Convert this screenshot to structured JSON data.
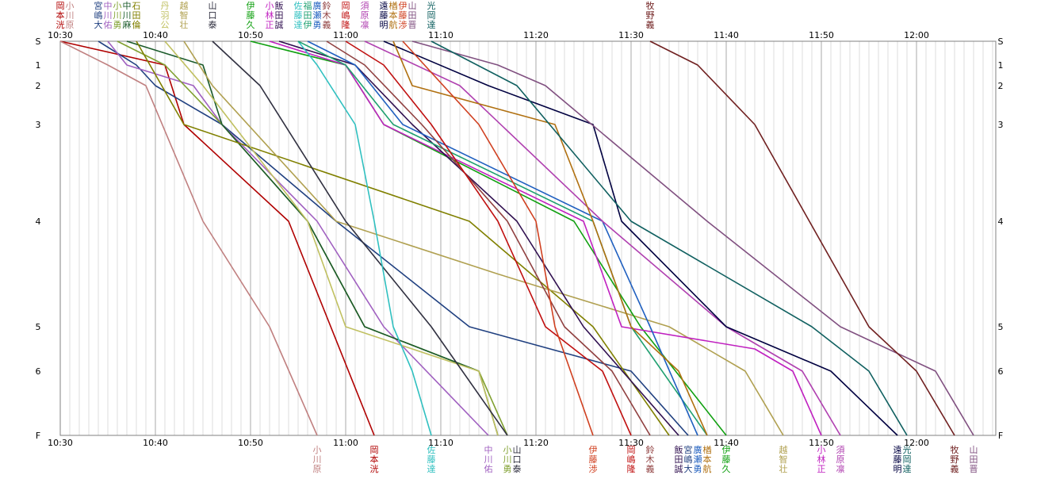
{
  "chart_data": {
    "type": "line",
    "title": "",
    "xlabel": "",
    "ylabel": "",
    "x_unit": "time of day",
    "xlim": [
      "10:30",
      "12:08"
    ],
    "x_ticks": [
      "10:30",
      "10:40",
      "10:50",
      "11:00",
      "11:10",
      "11:20",
      "11:30",
      "11:40",
      "11:50",
      "12:00"
    ],
    "y_ticks": [
      {
        "label": "S",
        "v": 0
      },
      {
        "label": "1",
        "v": 1
      },
      {
        "label": "2",
        "v": 2
      },
      {
        "label": "3",
        "v": 3
      },
      {
        "label": "4",
        "v": 4
      },
      {
        "label": "5",
        "v": 5
      },
      {
        "label": "6",
        "v": 6
      },
      {
        "label": "F",
        "v": 7
      }
    ],
    "grid": "vertical lines every minute",
    "series": [
      {
        "name": "岡本洸",
        "color": "#b00000",
        "points": [
          [
            "10:30",
            0
          ],
          [
            "10:41",
            1
          ],
          [
            "10:43",
            3
          ],
          [
            "10:54",
            4
          ],
          [
            "11:03",
            7
          ]
        ],
        "label_top": true,
        "label_bottom": true
      },
      {
        "name": "小川原",
        "color": "#c08080",
        "points": [
          [
            "10:30",
            0
          ],
          [
            "10:35",
            1
          ],
          [
            "10:39",
            2
          ],
          [
            "10:45",
            4
          ],
          [
            "10:52",
            5
          ],
          [
            "10:57",
            7
          ]
        ],
        "label_top": true,
        "label_bottom": true
      },
      {
        "name": "宮嶋大",
        "color": "#204080",
        "points": [
          [
            "10:34",
            0
          ],
          [
            "10:38",
            1
          ],
          [
            "10:40",
            2
          ],
          [
            "10:47",
            3
          ],
          [
            "10:59",
            4
          ],
          [
            "11:13",
            5
          ],
          [
            "11:30",
            6
          ],
          [
            "11:36",
            7
          ]
        ],
        "label_top": true,
        "label_bottom": true
      },
      {
        "name": "中川佑",
        "color": "#a060c0",
        "points": [
          [
            "10:35",
            0
          ],
          [
            "10:37",
            1
          ],
          [
            "10:44",
            2
          ],
          [
            "10:47",
            3
          ],
          [
            "10:57",
            4
          ],
          [
            "11:04",
            5
          ],
          [
            "11:15",
            7
          ]
        ],
        "label_top": true,
        "label_bottom": true
      },
      {
        "name": "小川勇",
        "color": "#80a030",
        "points": [
          [
            "10:36",
            0
          ],
          [
            "10:41",
            1
          ],
          [
            "10:47",
            3
          ],
          [
            "10:56",
            4
          ],
          [
            "11:02",
            5
          ],
          [
            "11:14",
            6
          ],
          [
            "11:17",
            7
          ]
        ],
        "label_top": true,
        "label_bottom": true
      },
      {
        "name": "中川麻",
        "color": "#1a5a2a",
        "points": [
          [
            "10:37",
            0
          ],
          [
            "10:45",
            1
          ],
          [
            "10:47",
            3
          ],
          [
            "10:56",
            4
          ],
          [
            "11:02",
            5
          ],
          [
            "11:14",
            6
          ],
          [
            "11:16",
            7
          ]
        ],
        "label_top": true,
        "label_bottom": false
      },
      {
        "name": "石田倫",
        "color": "#808000",
        "points": [
          [
            "10:38",
            0
          ],
          [
            "10:43",
            3
          ],
          [
            "11:13",
            4
          ],
          [
            "11:26",
            5
          ],
          [
            "11:34",
            7
          ]
        ],
        "label_top": true,
        "label_bottom": false
      },
      {
        "name": "丹羽公",
        "color": "#c0c060",
        "points": [
          [
            "10:41",
            0
          ],
          [
            "10:45",
            2
          ],
          [
            "10:56",
            4
          ],
          [
            "11:00",
            5
          ],
          [
            "11:14",
            6
          ],
          [
            "11:16",
            7
          ]
        ],
        "label_top": true,
        "label_bottom": false
      },
      {
        "name": "越智壮",
        "color": "#b0a050",
        "points": [
          [
            "10:43",
            0
          ],
          [
            "10:46",
            2
          ],
          [
            "10:59",
            4
          ],
          [
            "11:16",
            4.5
          ],
          [
            "11:34",
            5
          ],
          [
            "11:42",
            6
          ],
          [
            "11:46",
            7
          ]
        ],
        "label_top": true,
        "label_bottom": true
      },
      {
        "name": "山口泰",
        "color": "#303040",
        "points": [
          [
            "10:46",
            0
          ],
          [
            "10:51",
            2
          ],
          [
            "11:00",
            4
          ],
          [
            "11:09",
            5
          ],
          [
            "11:17",
            7
          ]
        ],
        "label_top": true,
        "label_bottom": true
      },
      {
        "name": "伊藤久",
        "color": "#10a010",
        "points": [
          [
            "10:50",
            0
          ],
          [
            "11:00",
            1
          ],
          [
            "11:04",
            3
          ],
          [
            "11:24",
            4
          ],
          [
            "11:31",
            5
          ],
          [
            "11:40",
            7
          ]
        ],
        "label_top": true,
        "label_bottom": true
      },
      {
        "name": "小林正",
        "color": "#c020c0",
        "points": [
          [
            "10:52",
            0
          ],
          [
            "11:00",
            1
          ],
          [
            "11:04",
            3
          ],
          [
            "11:25",
            4
          ],
          [
            "11:29",
            5
          ],
          [
            "11:43",
            5.5
          ],
          [
            "11:47",
            6
          ],
          [
            "11:50",
            7
          ]
        ],
        "label_top": true,
        "label_bottom": true
      },
      {
        "name": "飯田誠",
        "color": "#301050",
        "points": [
          [
            "10:53",
            0
          ],
          [
            "11:01",
            1
          ],
          [
            "11:07",
            3
          ],
          [
            "11:18",
            4
          ],
          [
            "11:25",
            5
          ],
          [
            "11:35",
            7
          ]
        ],
        "label_top": true,
        "label_bottom": true
      },
      {
        "name": "佐藤達",
        "color": "#30c0c0",
        "points": [
          [
            "10:55",
            0
          ],
          [
            "10:57",
            1
          ],
          [
            "11:01",
            3
          ],
          [
            "11:03",
            4
          ],
          [
            "11:05",
            5
          ],
          [
            "11:07",
            6
          ],
          [
            "11:09",
            7
          ]
        ],
        "label_top": true,
        "label_bottom": true
      },
      {
        "name": "福田伊",
        "color": "#20a070",
        "points": [
          [
            "10:55",
            0
          ],
          [
            "11:00",
            1
          ],
          [
            "11:05",
            3
          ],
          [
            "11:26",
            4
          ],
          [
            "11:30",
            5
          ],
          [
            "11:38",
            7
          ]
        ],
        "label_top": true,
        "label_bottom": false
      },
      {
        "name": "廣瀬勇",
        "color": "#2060c0",
        "points": [
          [
            "10:56",
            0
          ],
          [
            "11:01",
            1
          ],
          [
            "11:06",
            3
          ],
          [
            "11:27",
            4
          ],
          [
            "11:32",
            5
          ],
          [
            "11:37",
            7
          ]
        ],
        "label_top": true,
        "label_bottom": true
      },
      {
        "name": "鈴木義",
        "color": "#904040",
        "points": [
          [
            "10:58",
            0
          ],
          [
            "11:02",
            1
          ],
          [
            "11:08",
            3
          ],
          [
            "11:17",
            4
          ],
          [
            "11:23",
            5
          ],
          [
            "11:28",
            6
          ],
          [
            "11:32",
            7
          ]
        ],
        "label_top": true,
        "label_bottom": true
      },
      {
        "name": "岡嶋隆",
        "color": "#c01010",
        "points": [
          [
            "11:00",
            0
          ],
          [
            "11:04",
            1
          ],
          [
            "11:09",
            3
          ],
          [
            "11:16",
            4
          ],
          [
            "11:21",
            5
          ],
          [
            "11:27",
            6
          ],
          [
            "11:30",
            7
          ]
        ],
        "label_top": true,
        "label_bottom": true
      },
      {
        "name": "須原凛",
        "color": "#b040b0",
        "points": [
          [
            "11:02",
            0
          ],
          [
            "11:12",
            2
          ],
          [
            "11:27",
            4
          ],
          [
            "11:40",
            5
          ],
          [
            "11:48",
            6
          ],
          [
            "11:52",
            7
          ]
        ],
        "label_top": true,
        "label_bottom": true
      },
      {
        "name": "遠藤明",
        "color": "#000040",
        "points": [
          [
            "11:04",
            0
          ],
          [
            "11:15",
            2
          ],
          [
            "11:26",
            3
          ],
          [
            "11:29",
            4
          ],
          [
            "11:40",
            5
          ],
          [
            "11:51",
            6
          ],
          [
            "11:58",
            7
          ]
        ],
        "label_top": true,
        "label_bottom": true
      },
      {
        "name": "楢本航",
        "color": "#b07010",
        "points": [
          [
            "11:05",
            0
          ],
          [
            "11:07",
            2
          ],
          [
            "11:22",
            3
          ],
          [
            "11:26",
            4
          ],
          [
            "11:30",
            5
          ],
          [
            "11:35",
            6
          ],
          [
            "11:38",
            7
          ]
        ],
        "label_top": true,
        "label_bottom": true
      },
      {
        "name": "伊藤渉",
        "color": "#d04020",
        "points": [
          [
            "11:06",
            0
          ],
          [
            "11:14",
            3
          ],
          [
            "11:20",
            4
          ],
          [
            "11:22",
            5
          ],
          [
            "11:26",
            7
          ]
        ],
        "label_top": true,
        "label_bottom": true
      },
      {
        "name": "山田晋",
        "color": "#805080",
        "points": [
          [
            "11:07",
            0
          ],
          [
            "11:16",
            1
          ],
          [
            "11:21",
            2
          ],
          [
            "11:38",
            4
          ],
          [
            "11:52",
            5
          ],
          [
            "12:02",
            6
          ],
          [
            "12:06",
            7
          ]
        ],
        "label_top": true,
        "label_bottom": true
      },
      {
        "name": "光岡達",
        "color": "#106060",
        "points": [
          [
            "11:09",
            0
          ],
          [
            "11:18",
            2
          ],
          [
            "11:30",
            4
          ],
          [
            "11:49",
            5
          ],
          [
            "11:55",
            6
          ],
          [
            "11:59",
            7
          ]
        ],
        "label_top": true,
        "label_bottom": true
      },
      {
        "name": "牧野義",
        "color": "#702020",
        "points": [
          [
            "11:32",
            0
          ],
          [
            "11:37",
            1
          ],
          [
            "11:43",
            3
          ],
          [
            "11:55",
            5
          ],
          [
            "12:00",
            6
          ],
          [
            "12:04",
            7
          ]
        ],
        "label_top": true,
        "label_bottom": true
      }
    ]
  }
}
